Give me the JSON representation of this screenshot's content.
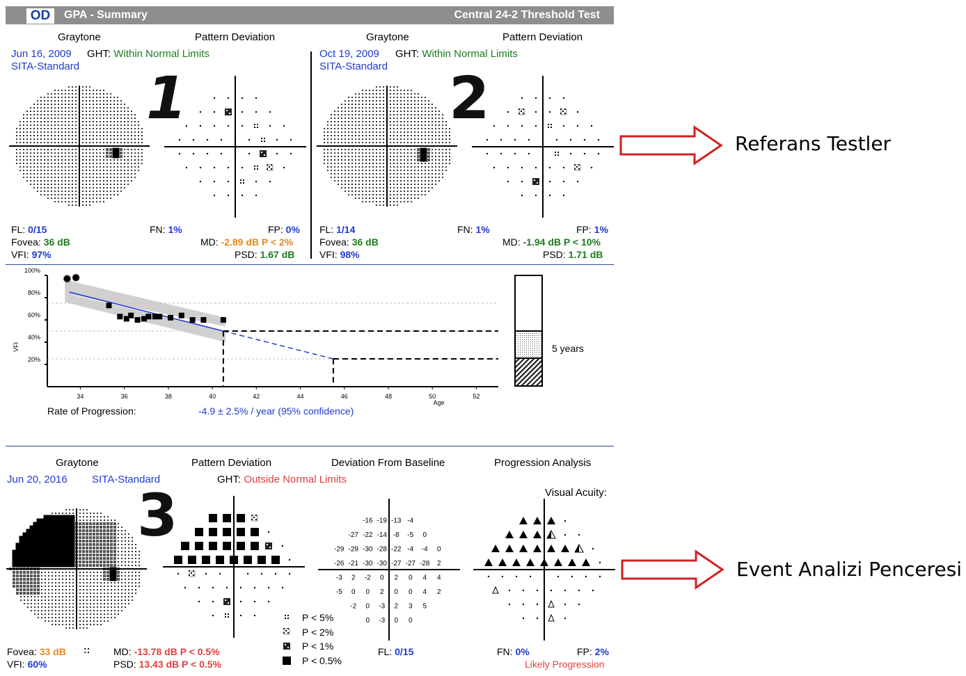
{
  "header": {
    "eye": "OD",
    "title": "GPA - Summary",
    "test": "Central 24-2 Threshold Test"
  },
  "ref1": {
    "graytone": "Graytone",
    "pattern_deviation": "Pattern Deviation",
    "date": "Jun 16, 2009",
    "ght_label": "GHT:",
    "ght_value": "Within Normal Limits",
    "strategy": "SITA-Standard",
    "number": "1",
    "fl_label": "FL:",
    "fl_value": "0/15",
    "fn_label": "FN:",
    "fn_value": "1%",
    "fp_label": "FP:",
    "fp_value": "0%",
    "fovea_label": "Fovea:",
    "fovea_value": "36 dB",
    "md_label": "MD:",
    "md_value": "-2.89 dB P < 2%",
    "vfi_label": "VFI:",
    "vfi_value": "97%",
    "psd_label": "PSD:",
    "psd_value": "1.67 dB"
  },
  "ref2": {
    "graytone": "Graytone",
    "pattern_deviation": "Pattern Deviation",
    "date": "Oct 19, 2009",
    "ght_label": "GHT:",
    "ght_value": "Within Normal Limits",
    "strategy": "SITA-Standard",
    "number": "2",
    "fl_label": "FL:",
    "fl_value": "1/14",
    "fn_label": "FN:",
    "fn_value": "1%",
    "fp_label": "FP:",
    "fp_value": "1%",
    "fovea_label": "Fovea:",
    "fovea_value": "36 dB",
    "md_label": "MD:",
    "md_value": "-1.94 dB P < 10%",
    "vfi_label": "VFI:",
    "vfi_value": "98%",
    "psd_label": "PSD:",
    "psd_value": "1.71 dB"
  },
  "annotations": {
    "reference": "Referans Testler",
    "event": "Event Analizi Penceresi"
  },
  "progression": {
    "rate_label": "Rate of Progression:",
    "rate_value": "-4.9 ± 2.5% / year (95% confidence)",
    "years_label": "5 years"
  },
  "chart_data": {
    "type": "scatter",
    "ylabel": "VFI",
    "xlabel": "Age",
    "xlim": [
      32.5,
      53
    ],
    "ylim": [
      0,
      100
    ],
    "x_ticks": [
      "34",
      "36",
      "38",
      "40",
      "42",
      "44",
      "46",
      "48",
      "50",
      "52"
    ],
    "y_ticks": [
      "20%",
      "40%",
      "60%",
      "80%",
      "100%"
    ],
    "points": [
      {
        "x": 33.4,
        "y": 97
      },
      {
        "x": 33.8,
        "y": 98
      },
      {
        "x": 35.3,
        "y": 73
      },
      {
        "x": 35.8,
        "y": 63
      },
      {
        "x": 36.1,
        "y": 61
      },
      {
        "x": 36.3,
        "y": 64
      },
      {
        "x": 36.6,
        "y": 60
      },
      {
        "x": 36.9,
        "y": 61
      },
      {
        "x": 37.1,
        "y": 63
      },
      {
        "x": 37.4,
        "y": 63
      },
      {
        "x": 37.6,
        "y": 63
      },
      {
        "x": 38.1,
        "y": 62
      },
      {
        "x": 38.6,
        "y": 64
      },
      {
        "x": 39.1,
        "y": 60
      },
      {
        "x": 39.6,
        "y": 60
      },
      {
        "x": 40.5,
        "y": 60
      }
    ],
    "trend": {
      "x": [
        33.5,
        40.5
      ],
      "y": [
        85,
        50
      ]
    },
    "projection": {
      "x": [
        40.5,
        45.5
      ],
      "y": [
        50,
        25
      ]
    },
    "reference_lines": [
      75,
      50,
      25
    ],
    "grid": false
  },
  "followup": {
    "graytone": "Graytone",
    "pattern_deviation": "Pattern Deviation",
    "deviation_from_baseline": "Deviation From Baseline",
    "progression_analysis": "Progression Analysis",
    "date": "Jun 20, 2016",
    "strategy": "SITA-Standard",
    "ght_label": "GHT:",
    "ght_value": "Outside Normal Limits",
    "visual_acuity": "Visual Acuity:",
    "number": "3",
    "fovea_label": "Fovea:",
    "fovea_value": "33 dB",
    "fovea_mark": "::",
    "md_label": "MD:",
    "md_value": "-13.78 dB P < 0.5%",
    "vfi_label": "VFI:",
    "vfi_value": "60%",
    "psd_label": "PSD:",
    "psd_value": "13.43 dB P < 0.5%",
    "fl_label": "FL:",
    "fl_value": "0/15",
    "fn_label": "FN:",
    "fn_value": "0%",
    "fp_label": "FP:",
    "fp_value": "2%",
    "status": "Likely Progression",
    "legend": [
      "P < 5%",
      "P < 2%",
      "P < 1%",
      "P < 0.5%"
    ],
    "baseline_rows": [
      [
        "-16",
        "-19",
        "-13",
        "-4"
      ],
      [
        "-27",
        "-22",
        "-14",
        "-8",
        "-5",
        "0"
      ],
      [
        "-29",
        "-29",
        "-30",
        "-28",
        "-22",
        "-4",
        "-4",
        "0"
      ],
      [
        "-26",
        "-21",
        "-30",
        "-30",
        "-27",
        "-27",
        "-28",
        "2"
      ],
      [
        "-3",
        "2",
        "-2",
        "0",
        "2",
        "0",
        "4",
        "4"
      ],
      [
        "-5",
        "0",
        "0",
        "2",
        "0",
        "0",
        "4",
        "2"
      ],
      [
        "-2",
        "0",
        "-3",
        "2",
        "3",
        "5"
      ],
      [
        "0",
        "-3",
        "0",
        "0"
      ]
    ]
  }
}
